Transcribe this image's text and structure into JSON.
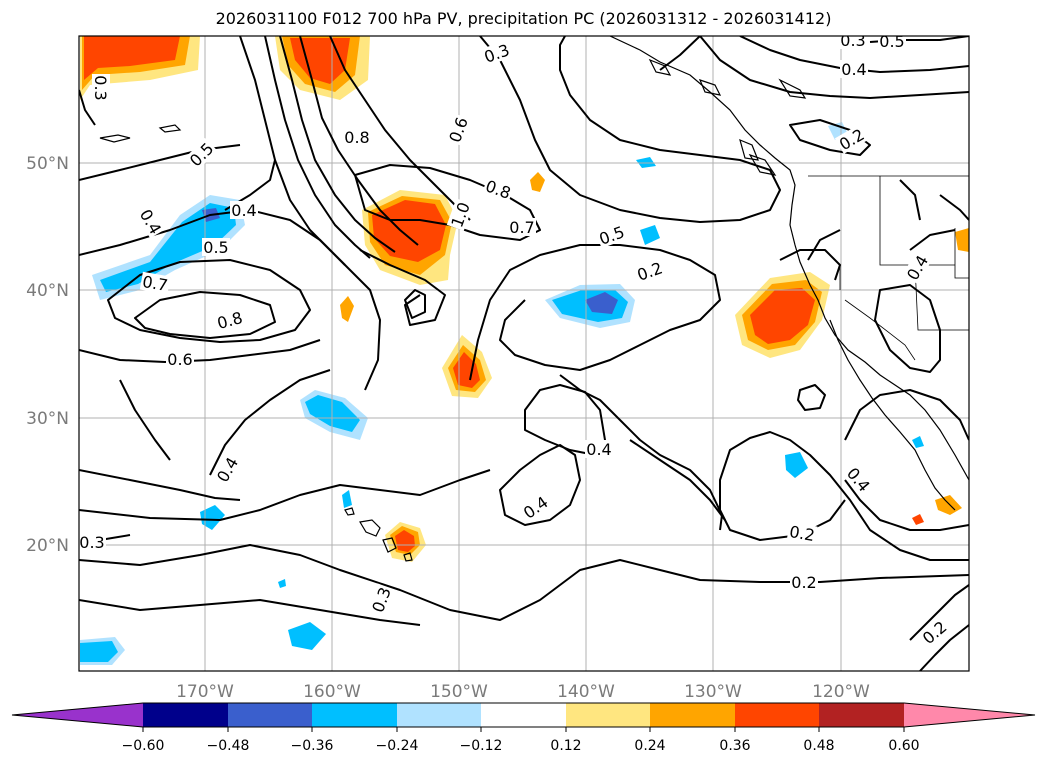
{
  "title": "2026031100 F012 700 hPa PV, precipitation PC (2026031312 - 2026031412)",
  "latitude_labels": [
    "50°N",
    "40°N",
    "30°N",
    "20°N"
  ],
  "longitude_labels": [
    "170°W",
    "160°W",
    "150°W",
    "140°W",
    "130°W",
    "120°W"
  ],
  "colorbar": {
    "ticks": [
      "−0.60",
      "−0.48",
      "−0.36",
      "−0.24",
      "−0.12",
      "0.12",
      "0.24",
      "0.36",
      "0.48",
      "0.60"
    ],
    "colors": [
      "#9932cc",
      "#00008b",
      "#3a5fcd",
      "#00bfff",
      "#b0e2ff",
      "#ffffff",
      "#ffe680",
      "#ffa500",
      "#ff4500",
      "#b22222",
      "#ff88aa"
    ]
  },
  "contour_labels": [
    {
      "text": "0.3"
    },
    {
      "text": "0.5"
    },
    {
      "text": "0.4"
    },
    {
      "text": "0.3"
    },
    {
      "text": "0.8"
    },
    {
      "text": "0.6"
    },
    {
      "text": "0.5"
    },
    {
      "text": "0.8"
    },
    {
      "text": "0.7"
    },
    {
      "text": "1.0"
    },
    {
      "text": "0.5"
    },
    {
      "text": "0.2"
    },
    {
      "text": "0.2"
    },
    {
      "text": "0.4"
    },
    {
      "text": "0.3"
    },
    {
      "text": "0.4"
    },
    {
      "text": "0.4"
    },
    {
      "text": "0.5"
    },
    {
      "text": "0.7"
    },
    {
      "text": "0.8"
    },
    {
      "text": "0.6"
    },
    {
      "text": "0.4"
    },
    {
      "text": "0.4"
    },
    {
      "text": "0.4"
    },
    {
      "text": "0.4"
    },
    {
      "text": "0.2"
    },
    {
      "text": "0.2"
    },
    {
      "text": "0.2"
    },
    {
      "text": "0.3"
    },
    {
      "text": "0.3"
    }
  ]
}
